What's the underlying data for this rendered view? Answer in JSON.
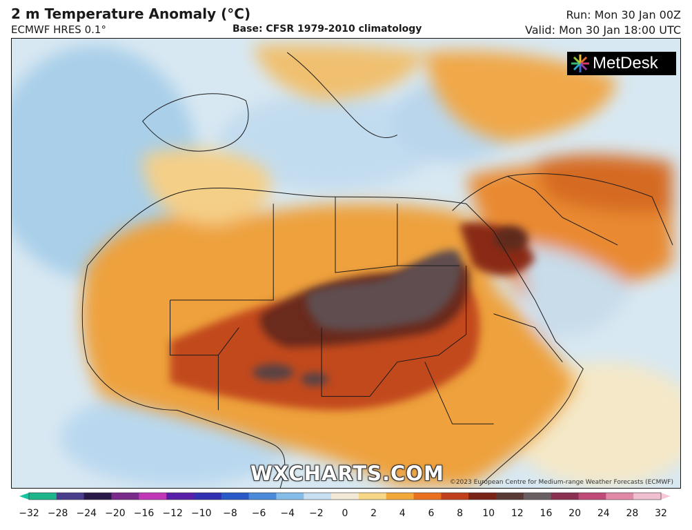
{
  "header": {
    "title": "2 m Temperature Anomaly (°C)",
    "model": "ECMWF HRES 0.1°",
    "base": "Base: CFSR 1979-2010 climatology",
    "run": "Run: Mon 30 Jan 00Z",
    "valid": "Valid: Mon 30 Jan 18:00 UTC"
  },
  "logo": {
    "text": "MetDesk",
    "icon": "metdesk-flower-icon"
  },
  "watermark": "WXCHARTS.COM",
  "copyright": "©2023 European Centre for Medium-range Weather Forecasts (ECMWF)",
  "colorbar": {
    "ticks": [
      "−32",
      "−28",
      "−24",
      "−20",
      "−16",
      "−12",
      "−10",
      "−8",
      "−6",
      "−4",
      "−2",
      "0",
      "2",
      "4",
      "6",
      "8",
      "10",
      "12",
      "16",
      "20",
      "24",
      "28",
      "32"
    ],
    "colors": [
      "#1fb58a",
      "#4a3d8c",
      "#2a1a4a",
      "#7a2a8a",
      "#c038b8",
      "#5a1fa8",
      "#3030b0",
      "#2a5ac8",
      "#4a8ad8",
      "#86bde8",
      "#c8e0f2",
      "#f2ead6",
      "#f8d888",
      "#f2a93a",
      "#e8701e",
      "#c0401c",
      "#7a2418",
      "#5a3a36",
      "#6a6062",
      "#8a3050",
      "#c04a78",
      "#e08aa8",
      "#f0c0d0"
    ],
    "extend_colors": {
      "low": "#18c4a0",
      "high": "#f4c8d8"
    }
  },
  "map": {
    "region": "Africa, Mediterranean and Middle East",
    "colors": {
      "sea": "#cfe2f0",
      "cool": "#9ec6e6",
      "mild": "#f4e0b0",
      "warm": "#f2a540",
      "hot": "#d6621c",
      "very_hot": "#8a2a14",
      "extreme": "#5e4a4a",
      "land_border": "#1a1a1a"
    }
  }
}
